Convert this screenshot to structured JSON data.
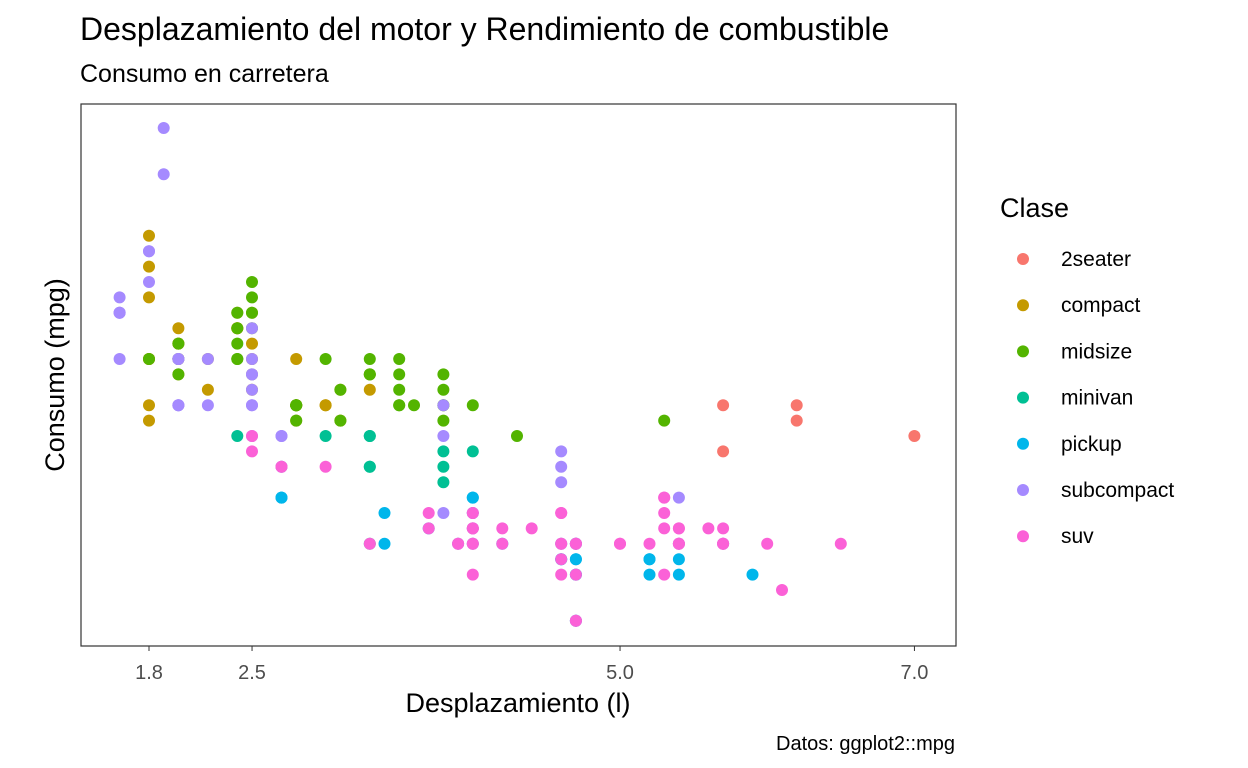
{
  "chart_data": {
    "type": "scatter",
    "title": "Desplazamiento del motor y Rendimiento de combustible",
    "subtitle": "Consumo en carretera",
    "xlabel": "Desplazamiento (l)",
    "ylabel": "Consumo (mpg)",
    "caption": "Datos: ggplot2::mpg",
    "x_ticks": [
      1.8,
      2.5,
      5.0,
      7.0
    ],
    "x_tick_labels": [
      "1.8",
      "2.5",
      "5.0",
      "7.0"
    ],
    "y_ticks": [],
    "xlim": [
      1.6,
      7.0
    ],
    "ylim": [
      12,
      44
    ],
    "grid": false,
    "legend": {
      "title": "Clase",
      "position": "right"
    },
    "series": [
      {
        "name": "2seater",
        "color": "#F8766D",
        "points": [
          [
            5.7,
            26
          ],
          [
            5.7,
            23
          ],
          [
            6.2,
            26
          ],
          [
            6.2,
            25
          ],
          [
            7.0,
            24
          ]
        ]
      },
      {
        "name": "compact",
        "color": "#C49A00",
        "points": [
          [
            1.8,
            29
          ],
          [
            1.8,
            29
          ],
          [
            2.0,
            31
          ],
          [
            2.0,
            30
          ],
          [
            2.8,
            26
          ],
          [
            2.8,
            26
          ],
          [
            3.1,
            27
          ],
          [
            1.8,
            26
          ],
          [
            1.8,
            25
          ],
          [
            2.0,
            28
          ],
          [
            2.0,
            29
          ],
          [
            2.8,
            25
          ],
          [
            3.1,
            25
          ],
          [
            2.2,
            27
          ],
          [
            2.2,
            29
          ],
          [
            2.4,
            31
          ],
          [
            2.4,
            31
          ],
          [
            3.0,
            26
          ],
          [
            3.0,
            26
          ],
          [
            3.3,
            28
          ],
          [
            3.3,
            27
          ],
          [
            2.5,
            29
          ],
          [
            2.5,
            30
          ],
          [
            2.5,
            28
          ],
          [
            1.8,
            37
          ],
          [
            1.8,
            35
          ],
          [
            1.8,
            33
          ],
          [
            1.8,
            29
          ],
          [
            2.0,
            30
          ],
          [
            2.5,
            32
          ],
          [
            2.5,
            27
          ],
          [
            2.8,
            26
          ],
          [
            2.8,
            26
          ],
          [
            2.8,
            29
          ],
          [
            2.8,
            26
          ],
          [
            2.0,
            29
          ],
          [
            2.4,
            32
          ],
          [
            2.4,
            31
          ]
        ]
      },
      {
        "name": "midsize",
        "color": "#53B400",
        "points": [
          [
            2.4,
            30
          ],
          [
            2.4,
            32
          ],
          [
            3.1,
            27
          ],
          [
            3.5,
            26
          ],
          [
            3.6,
            26
          ],
          [
            2.4,
            31
          ],
          [
            2.5,
            34
          ],
          [
            2.5,
            33
          ],
          [
            3.3,
            29
          ],
          [
            3.3,
            28
          ],
          [
            3.8,
            28
          ],
          [
            3.8,
            26
          ],
          [
            4.0,
            26
          ],
          [
            5.3,
            25
          ],
          [
            2.4,
            29
          ],
          [
            2.4,
            29
          ],
          [
            3.0,
            29
          ],
          [
            3.3,
            28
          ],
          [
            3.5,
            27
          ],
          [
            3.5,
            26
          ],
          [
            3.8,
            26
          ],
          [
            3.8,
            27
          ],
          [
            3.8,
            25
          ],
          [
            3.1,
            25
          ],
          [
            3.5,
            28
          ],
          [
            3.5,
            29
          ],
          [
            4.3,
            24
          ],
          [
            2.5,
            31
          ],
          [
            2.5,
            32
          ],
          [
            2.8,
            26
          ],
          [
            2.8,
            26
          ],
          [
            2.8,
            26
          ],
          [
            2.8,
            25
          ],
          [
            1.8,
            29
          ],
          [
            2.0,
            29
          ],
          [
            2.0,
            28
          ],
          [
            2.0,
            30
          ]
        ]
      },
      {
        "name": "minivan",
        "color": "#00C094",
        "points": [
          [
            2.4,
            24
          ],
          [
            3.0,
            24
          ],
          [
            3.3,
            22
          ],
          [
            3.3,
            22
          ],
          [
            3.3,
            24
          ],
          [
            3.3,
            24
          ],
          [
            3.3,
            17
          ],
          [
            3.8,
            22
          ],
          [
            3.8,
            21
          ],
          [
            3.8,
            23
          ],
          [
            4.0,
            23
          ]
        ]
      },
      {
        "name": "pickup",
        "color": "#00B6EB",
        "points": [
          [
            2.7,
            20
          ],
          [
            2.7,
            22
          ],
          [
            2.7,
            20
          ],
          [
            3.4,
            19
          ],
          [
            3.4,
            17
          ],
          [
            3.7,
            18
          ],
          [
            3.9,
            17
          ],
          [
            4.7,
            17
          ],
          [
            4.7,
            15
          ],
          [
            4.7,
            16
          ],
          [
            4.7,
            17
          ],
          [
            5.2,
            16
          ],
          [
            5.2,
            15
          ],
          [
            5.7,
            17
          ],
          [
            5.9,
            15
          ],
          [
            4.0,
            20
          ],
          [
            4.0,
            17
          ],
          [
            4.6,
            16
          ],
          [
            4.6,
            17
          ],
          [
            5.4,
            15
          ],
          [
            5.4,
            16
          ],
          [
            4.2,
            17
          ],
          [
            4.7,
            15
          ],
          [
            5.2,
            16
          ],
          [
            5.4,
            17
          ],
          [
            4.7,
            12
          ],
          [
            4.7,
            16
          ],
          [
            4.0,
            18
          ],
          [
            4.0,
            20
          ],
          [
            4.6,
            16
          ],
          [
            4.0,
            19
          ],
          [
            4.7,
            17
          ],
          [
            4.7,
            12
          ]
        ]
      },
      {
        "name": "subcompact",
        "color": "#A58AFF",
        "points": [
          [
            1.6,
            33
          ],
          [
            1.6,
            32
          ],
          [
            1.6,
            32
          ],
          [
            1.6,
            29
          ],
          [
            1.6,
            32
          ],
          [
            1.8,
            34
          ],
          [
            1.8,
            36
          ],
          [
            1.8,
            36
          ],
          [
            2.0,
            29
          ],
          [
            1.9,
            44
          ],
          [
            1.9,
            41
          ],
          [
            2.0,
            29
          ],
          [
            2.0,
            26
          ],
          [
            2.5,
            31
          ],
          [
            2.5,
            28
          ],
          [
            2.5,
            27
          ],
          [
            2.5,
            26
          ],
          [
            2.7,
            24
          ],
          [
            3.8,
            26
          ],
          [
            3.8,
            24
          ],
          [
            3.8,
            19
          ],
          [
            4.6,
            21
          ],
          [
            4.6,
            22
          ],
          [
            4.6,
            23
          ],
          [
            5.4,
            20
          ],
          [
            2.0,
            26
          ],
          [
            2.0,
            26
          ],
          [
            2.0,
            29
          ],
          [
            2.5,
            26
          ],
          [
            2.5,
            29
          ],
          [
            2.2,
            26
          ],
          [
            2.2,
            29
          ],
          [
            2.5,
            28
          ],
          [
            2.5,
            24
          ],
          [
            2.7,
            24
          ]
        ]
      },
      {
        "name": "suv",
        "color": "#FB61D7",
        "points": [
          [
            5.3,
            20
          ],
          [
            5.3,
            15
          ],
          [
            5.3,
            20
          ],
          [
            5.7,
            17
          ],
          [
            6.0,
            17
          ],
          [
            5.7,
            17
          ],
          [
            5.7,
            17
          ],
          [
            6.5,
            17
          ],
          [
            3.7,
            19
          ],
          [
            3.7,
            18
          ],
          [
            3.9,
            17
          ],
          [
            3.9,
            17
          ],
          [
            4.7,
            17
          ],
          [
            4.7,
            17
          ],
          [
            4.7,
            12
          ],
          [
            5.2,
            17
          ],
          [
            4.7,
            12
          ],
          [
            4.7,
            17
          ],
          [
            5.7,
            18
          ],
          [
            6.1,
            14
          ],
          [
            4.0,
            17
          ],
          [
            4.0,
            19
          ],
          [
            4.0,
            18
          ],
          [
            4.6,
            17
          ],
          [
            4.6,
            19
          ],
          [
            4.6,
            17
          ],
          [
            5.0,
            17
          ],
          [
            5.4,
            17
          ],
          [
            5.4,
            18
          ],
          [
            5.4,
            17
          ],
          [
            5.4,
            17
          ],
          [
            5.4,
            18
          ],
          [
            4.0,
            15
          ],
          [
            4.0,
            19
          ],
          [
            4.6,
            19
          ],
          [
            5.0,
            17
          ],
          [
            4.2,
            18
          ],
          [
            4.4,
            18
          ],
          [
            3.0,
            22
          ],
          [
            3.3,
            17
          ],
          [
            4.0,
            18
          ],
          [
            4.0,
            17
          ],
          [
            4.7,
            15
          ],
          [
            5.3,
            18
          ],
          [
            5.3,
            19
          ],
          [
            4.6,
            15
          ],
          [
            4.6,
            16
          ],
          [
            5.6,
            18
          ],
          [
            2.5,
            24
          ],
          [
            2.5,
            23
          ],
          [
            2.7,
            22
          ],
          [
            2.7,
            22
          ],
          [
            4.0,
            18
          ],
          [
            4.2,
            17
          ]
        ]
      }
    ]
  }
}
